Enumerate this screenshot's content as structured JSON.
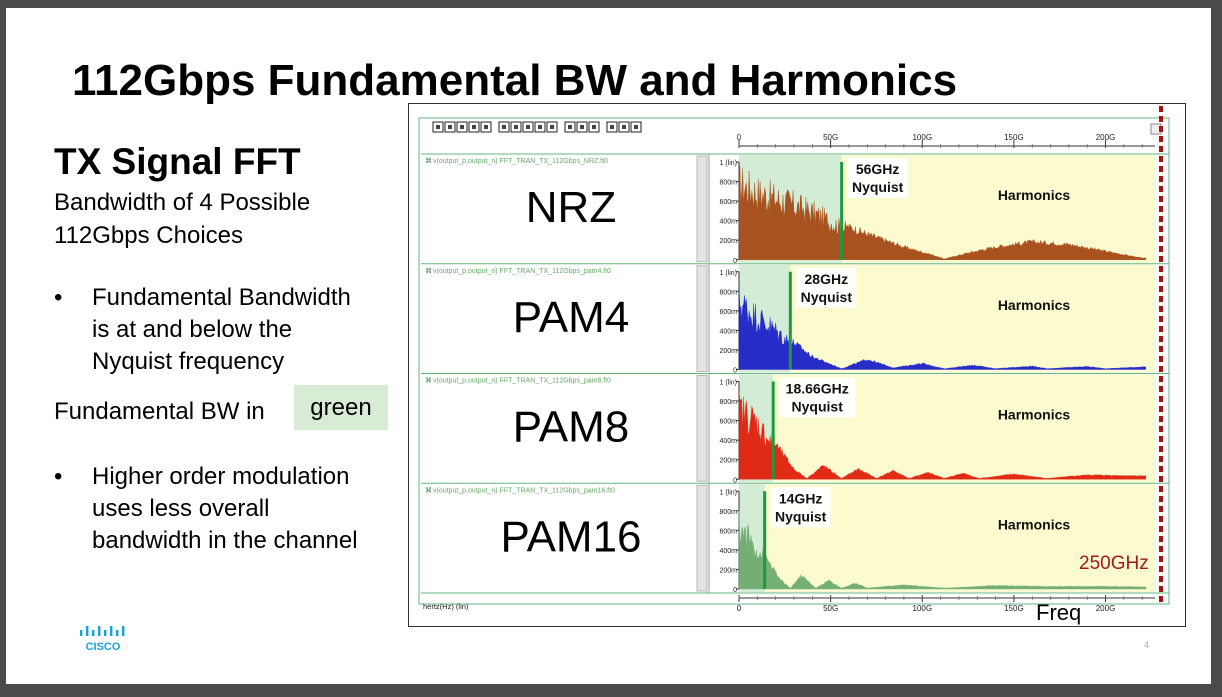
{
  "slide": {
    "title": "112Gbps Fundamental BW and Harmonics",
    "subtitle": "TX Signal FFT",
    "description_line1": "Bandwidth of 4 Possible",
    "description_line2": "112Gbps Choices",
    "bullets": [
      {
        "marker": "•",
        "lines": [
          "Fundamental Bandwidth",
          "is at and below the",
          "Nyquist frequency"
        ]
      },
      {
        "marker": "•",
        "lines": [
          "Higher order modulation",
          "uses less overall",
          "bandwidth in the channel"
        ]
      }
    ],
    "fundamental_bw_text": "Fundamental BW in",
    "green_label": "green",
    "logo_text": "CISCO",
    "page_number": "4",
    "colors": {
      "fundamental_bg": "#d3ecd5",
      "harmonics_bg": "#fbfbcf",
      "marker_line": "#1a9b3c",
      "limit_line": "#aa1111"
    }
  },
  "chart_data": {
    "type": "area",
    "x_unit": "hertz(Hz) (lin)",
    "x_ticks": [
      "0",
      "50G",
      "100G",
      "150G",
      "200G"
    ],
    "x_tick_values": [
      0,
      50,
      100,
      150,
      200
    ],
    "xlim": [
      0,
      227
    ],
    "y_ticks": [
      "1 (lin)",
      "800m",
      "600m",
      "400m",
      "200m",
      "0"
    ],
    "ylim": [
      0,
      1
    ],
    "freq_axis_label": "Freq",
    "limit_label": "250GHz",
    "harmonics_label": "Harmonics",
    "series": [
      {
        "name": "NRZ",
        "signal": "v(output_p,output_n)",
        "file": "FFT_TRAN_TX_112Gbps_NRZ.ft0",
        "color": "#a54a16",
        "nyquist_ghz": 56,
        "nyquist_label": "56GHz",
        "nyquist_word": "Nyquist",
        "envelope": [
          [
            0,
            1.0
          ],
          [
            10,
            0.88
          ],
          [
            25,
            0.76
          ],
          [
            40,
            0.62
          ],
          [
            56,
            0.42
          ],
          [
            70,
            0.3
          ],
          [
            90,
            0.15
          ],
          [
            105,
            0.06
          ],
          [
            112,
            0.01
          ],
          [
            125,
            0.08
          ],
          [
            140,
            0.15
          ],
          [
            160,
            0.21
          ],
          [
            180,
            0.18
          ],
          [
            200,
            0.1
          ],
          [
            220,
            0.02
          ]
        ]
      },
      {
        "name": "PAM4",
        "signal": "v(output_p,output_n)",
        "file": "FFT_TRAN_TX_112Gbps_pam4.ft0",
        "color": "#1e22c8",
        "nyquist_ghz": 28,
        "nyquist_label": "28GHz",
        "nyquist_word": "Nyquist",
        "envelope": [
          [
            0,
            0.9
          ],
          [
            8,
            0.72
          ],
          [
            18,
            0.55
          ],
          [
            28,
            0.35
          ],
          [
            40,
            0.15
          ],
          [
            56,
            0.01
          ],
          [
            70,
            0.12
          ],
          [
            84,
            0.02
          ],
          [
            100,
            0.07
          ],
          [
            112,
            0.01
          ],
          [
            128,
            0.05
          ],
          [
            140,
            0.01
          ],
          [
            160,
            0.04
          ],
          [
            168,
            0.01
          ],
          [
            190,
            0.035
          ],
          [
            200,
            0.01
          ],
          [
            220,
            0.03
          ]
        ]
      },
      {
        "name": "PAM8",
        "signal": "v(output_p,output_n)",
        "file": "FFT_TRAN_TX_112Gbps_pam8.ft0",
        "color": "#e0200c",
        "nyquist_ghz": 18.66,
        "nyquist_label": "18.66GHz",
        "nyquist_word": "Nyquist",
        "envelope": [
          [
            0,
            0.92
          ],
          [
            8,
            0.78
          ],
          [
            18.66,
            0.45
          ],
          [
            30,
            0.12
          ],
          [
            37,
            0.01
          ],
          [
            46,
            0.16
          ],
          [
            56,
            0.01
          ],
          [
            65,
            0.12
          ],
          [
            75,
            0.01
          ],
          [
            84,
            0.1
          ],
          [
            93,
            0.01
          ],
          [
            103,
            0.08
          ],
          [
            112,
            0.01
          ],
          [
            122,
            0.07
          ],
          [
            131,
            0.01
          ],
          [
            150,
            0.06
          ],
          [
            168,
            0.01
          ],
          [
            190,
            0.05
          ],
          [
            220,
            0.04
          ]
        ]
      },
      {
        "name": "PAM16",
        "signal": "v(output_p,output_n)",
        "file": "FFT_TRAN_TX_112Gbps_pam16.ft0",
        "color": "#6fab6f",
        "nyquist_ghz": 14,
        "nyquist_label": "14GHz",
        "nyquist_word": "Nyquist",
        "envelope": [
          [
            0,
            0.82
          ],
          [
            6,
            0.65
          ],
          [
            14,
            0.4
          ],
          [
            22,
            0.12
          ],
          [
            28,
            0.01
          ],
          [
            34,
            0.16
          ],
          [
            42,
            0.01
          ],
          [
            49,
            0.1
          ],
          [
            56,
            0.01
          ],
          [
            64,
            0.07
          ],
          [
            70,
            0.01
          ],
          [
            90,
            0.05
          ],
          [
            112,
            0.01
          ],
          [
            140,
            0.04
          ],
          [
            170,
            0.03
          ],
          [
            200,
            0.03
          ],
          [
            220,
            0.025
          ]
        ]
      }
    ]
  }
}
